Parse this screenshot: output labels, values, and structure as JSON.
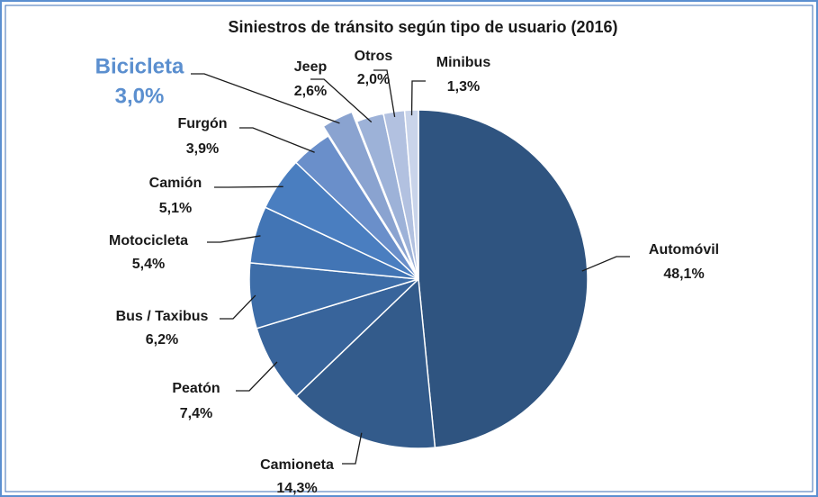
{
  "chart_data": {
    "type": "pie",
    "title": "Siniestros de tránsito según tipo de usuario (2016)",
    "categories": [
      "Automóvil",
      "Camioneta",
      "Peatón",
      "Bus / Taxibus",
      "Motocicleta",
      "Camión",
      "Furgón",
      "Bicicleta",
      "Jeep",
      "Otros",
      "Minibus"
    ],
    "values": [
      48.1,
      14.3,
      7.4,
      6.2,
      5.4,
      5.1,
      3.9,
      3.0,
      2.6,
      2.0,
      1.3
    ],
    "value_labels": [
      "48,1%",
      "14,3%",
      "7,4%",
      "6,2%",
      "5,4%",
      "5,1%",
      "3,9%",
      "3,0%",
      "2,6%",
      "2,0%",
      "1,3%"
    ],
    "colors": [
      "#2f5480",
      "#335b8b",
      "#38649b",
      "#3d6da8",
      "#4275b5",
      "#4a7ec0",
      "#6a8fca",
      "#8aa3d0",
      "#9db2d8",
      "#b2c1e0",
      "#c9d4ea"
    ],
    "exploded": "Bicicleta"
  }
}
